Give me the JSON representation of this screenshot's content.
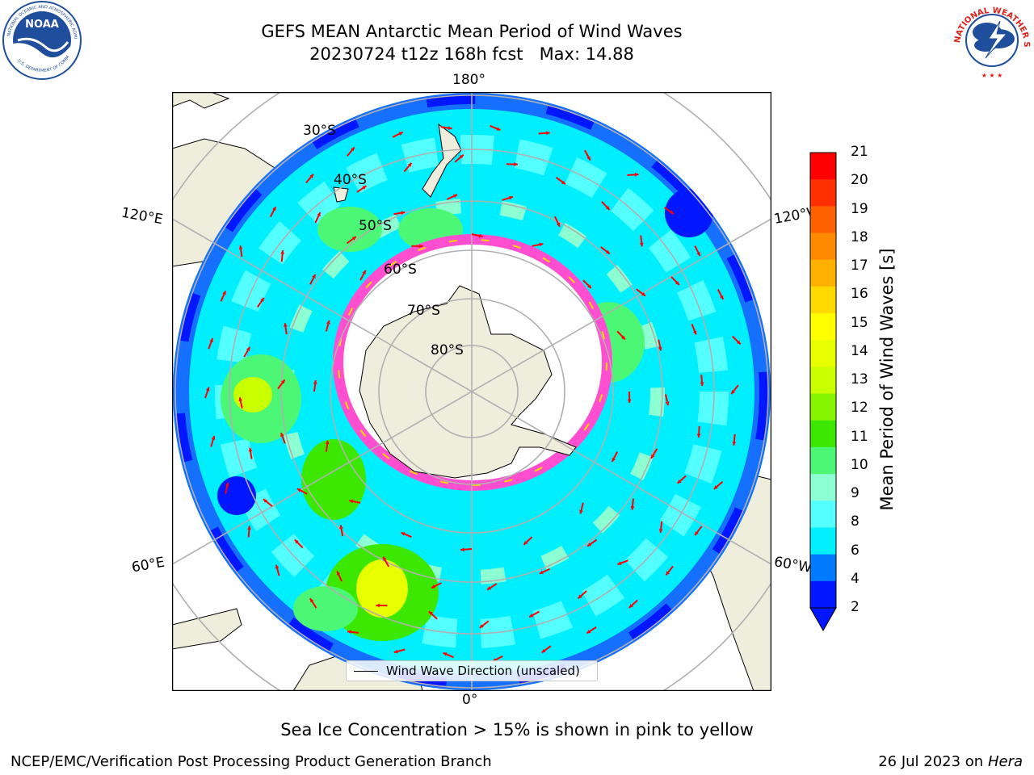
{
  "header": {
    "title_line1": "GEFS MEAN Antarctic Mean Period of Wind Waves",
    "title_line2": "20230724 t12z 168h fcst   Max: 14.88"
  },
  "logos": {
    "noaa": {
      "text": "NOAA",
      "ring_top": "NATIONAL OCEANIC AND ATMOSPHERIC ADMINISTRATION",
      "ring_bottom": "U.S. DEPARTMENT OF COMMERCE",
      "color": "#1f4e9c"
    },
    "nws": {
      "ring": "NATIONAL WEATHER SERVICE",
      "color": "#e0201b"
    }
  },
  "map": {
    "longitude_labels": {
      "top": "180°",
      "bottom": "0°",
      "left_upper": "120°E",
      "left_lower": "60°E",
      "right_upper": "120°W",
      "right_lower": "60°W"
    },
    "latitude_labels": [
      "30°S",
      "40°S",
      "50°S",
      "60°S",
      "70°S",
      "80°S"
    ],
    "land_color": "#efeddc",
    "ocean_outside_color": "#ffffff",
    "arrow_color": "#ff0000",
    "grid_color": "#b0b0b0"
  },
  "legend": {
    "label": "Wind Wave Direction (unscaled)"
  },
  "colorbar": {
    "label": "Mean Period of Wind Waves [s]",
    "ticks": [
      "21",
      "20",
      "19",
      "18",
      "17",
      "16",
      "15",
      "14",
      "13",
      "12",
      "11",
      "10",
      "9",
      "8",
      "6",
      "4",
      "2"
    ],
    "colors": [
      "#ff0000",
      "#ff2f00",
      "#ff6000",
      "#ff8a00",
      "#ffb100",
      "#ffd900",
      "#ffff00",
      "#e8ff00",
      "#c9ff00",
      "#85f500",
      "#3de800",
      "#4cf776",
      "#8cffd3",
      "#54ffff",
      "#00f0ff",
      "#007bff",
      "#0017ff"
    ]
  },
  "notes": {
    "sea_ice": "Sea Ice Concentration > 15% is shown in pink to yellow"
  },
  "footer": {
    "left": "NCEP/EMC/Verification Post Processing Product Generation Branch",
    "right_prefix": "26 Jul 2023 on ",
    "right_host": "Hera"
  }
}
